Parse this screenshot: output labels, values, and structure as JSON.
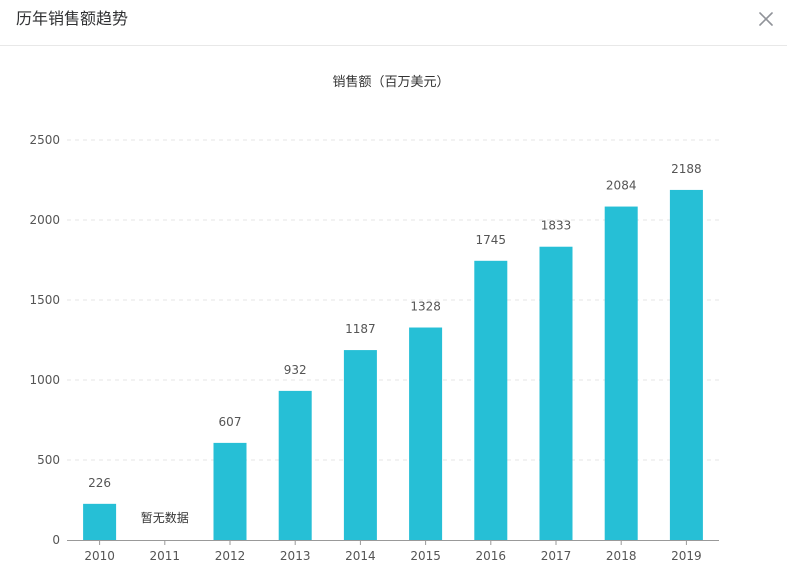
{
  "dialog": {
    "title": "历年销售额趋势",
    "close_icon": "close-icon"
  },
  "colors": {
    "bar": "#26bfd6",
    "axis": "#999999",
    "grid": "#e6e6e6",
    "label": "#555555"
  },
  "chart_data": {
    "type": "bar",
    "title": "销售额（百万美元）",
    "xlabel": "",
    "ylabel": "",
    "categories": [
      "2010",
      "2011",
      "2012",
      "2013",
      "2014",
      "2015",
      "2016",
      "2017",
      "2018",
      "2019"
    ],
    "values": [
      226,
      null,
      607,
      932,
      1187,
      1328,
      1745,
      1833,
      2084,
      2188
    ],
    "value_labels": [
      "226",
      "暂无数据",
      "607",
      "932",
      "1187",
      "1328",
      "1745",
      "1833",
      "2084",
      "2188"
    ],
    "ylim": [
      0,
      2500
    ],
    "yticks": [
      0,
      500,
      1000,
      1500,
      2000,
      2500
    ],
    "grid": true,
    "legend": "none"
  }
}
